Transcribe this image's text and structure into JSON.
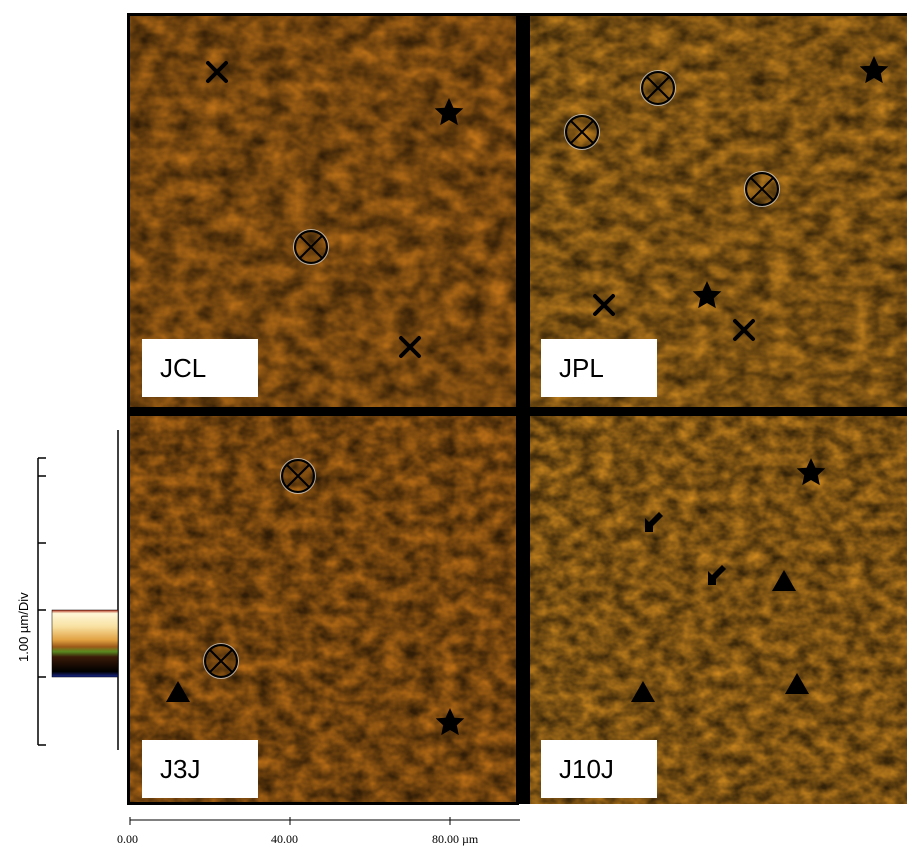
{
  "panels": [
    {
      "label": "JCL"
    },
    {
      "label": "JPL"
    },
    {
      "label": "J3J"
    },
    {
      "label": "J10J"
    }
  ],
  "scale_bar": {
    "title": "1.00 µm/Div",
    "gradient_colors": [
      "#b02a14",
      "#fff8d8",
      "#f0c060",
      "#c07020",
      "#5a8a20",
      "#3a1a08",
      "#000000",
      "#1a2a90"
    ]
  },
  "x_axis": {
    "ticks": [
      "0.00",
      "40.00",
      "80.00 µm"
    ]
  },
  "markers": {
    "symbols": [
      "circle-cross",
      "x-cross",
      "star",
      "triangle",
      "arrow"
    ]
  },
  "colors": {
    "texture_light": "#fff0b0",
    "texture_mid": "#d08a20",
    "texture_dark": "#2a1004",
    "divider": "#000000"
  }
}
